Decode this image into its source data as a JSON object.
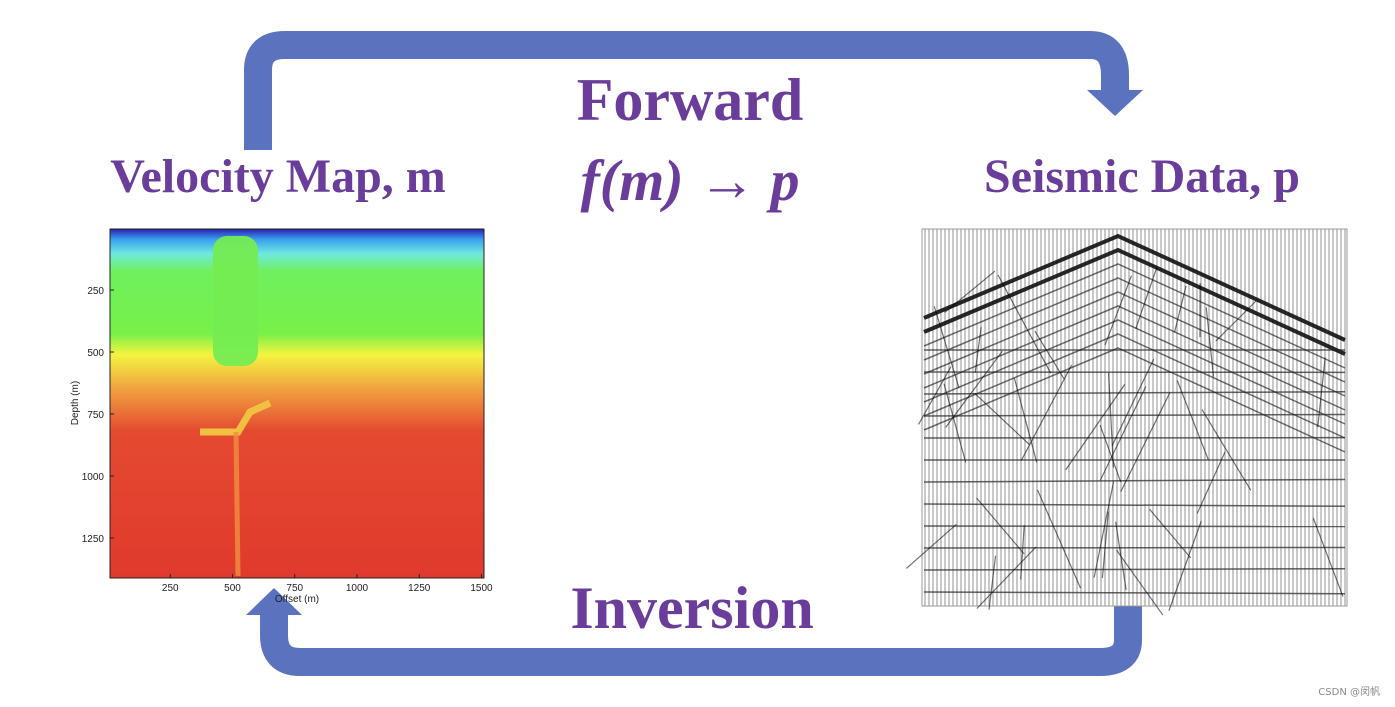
{
  "forward_label": "Forward",
  "formula": "f(m) → p",
  "left_title": "Velocity Map, m",
  "right_title": "Seismic Data, p",
  "inversion_label": "Inversion",
  "velocity_plot": {
    "ylabel": "Depth (m)",
    "xlabel": "Offset (m)",
    "yticks": [
      250,
      500,
      750,
      1000,
      1250
    ],
    "xticks": [
      250,
      500,
      750,
      1000,
      1250,
      1500
    ]
  },
  "watermark": "CSDN @闵帆"
}
